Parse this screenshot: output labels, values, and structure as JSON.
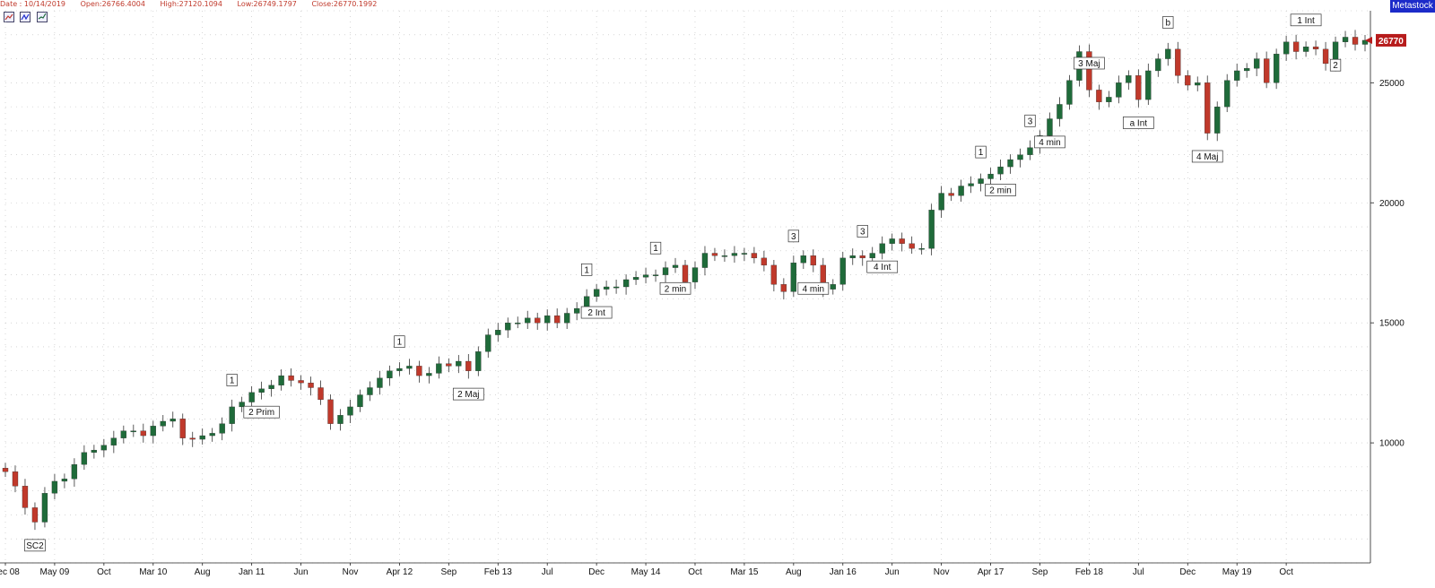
{
  "header": {
    "date": "Date : 10/14/2019",
    "open": "Open:26766.4004",
    "high": "High:27120.1094",
    "low": "Low:26749.1797",
    "close": "Close:26770.1992",
    "brand": "Metastock"
  },
  "toolbar": {
    "icons": [
      "chart-properties-icon",
      "chart-zoom-icon",
      "chart-indicator-icon"
    ]
  },
  "colors": {
    "up": "#1f6b3a",
    "down": "#c0392b",
    "grid": "#bdbdbd",
    "price_tag": "#b71c1c",
    "brand_bg": "#1c2bc9"
  },
  "chart_data": {
    "type": "line",
    "title": "",
    "xlabel": "",
    "ylabel": "",
    "ylim": [
      5000,
      28000
    ],
    "grid": true,
    "y_ticks": [
      10000,
      15000,
      20000,
      25000
    ],
    "y_tick_labels": [
      "10000",
      "15000",
      "20000",
      "25000"
    ],
    "x_ticks": [
      "Dec 08",
      "May 09",
      "Oct",
      "Mar 10",
      "Aug",
      "Jan 11",
      "Jun",
      "Nov",
      "Apr 12",
      "Sep",
      "Feb 13",
      "Jul",
      "Dec",
      "May 14",
      "Oct",
      "Mar 15",
      "Aug",
      "Jan 16",
      "Jun",
      "Nov",
      "Apr 17",
      "Sep",
      "Feb 18",
      "Jul",
      "Dec",
      "May 19",
      "Oct"
    ],
    "x_tick_index": [
      0,
      5,
      10,
      15,
      20,
      25,
      30,
      35,
      40,
      45,
      50,
      55,
      60,
      65,
      70,
      75,
      80,
      85,
      90,
      95,
      100,
      105,
      110,
      115,
      120,
      125,
      130
    ],
    "last_price_label": "26770",
    "last_price": 26770,
    "series": [
      {
        "values": [
          8800,
          8200,
          7300,
          6700,
          7900,
          8400,
          8500,
          9100,
          9600,
          9700,
          9900,
          10200,
          10500,
          10500,
          10300,
          10700,
          10900,
          11000,
          10200,
          10150,
          10300,
          10400,
          10800,
          11500,
          11700,
          12100,
          12250,
          12400,
          12800,
          12600,
          12500,
          12300,
          11800,
          10800,
          11150,
          11500,
          12000,
          12300,
          12700,
          13000,
          13100,
          13200,
          12800,
          12900,
          13300,
          13200,
          13400,
          13000,
          13800,
          14500,
          14700,
          15000,
          15000,
          15200,
          15000,
          15300,
          15000,
          15400,
          15600,
          16100,
          16400,
          16500,
          16500,
          16800,
          16900,
          17000,
          17000,
          17300,
          17400,
          16700,
          17300,
          17900,
          17800,
          17800,
          17900,
          17900,
          17700,
          17400,
          16600,
          16300,
          17500,
          17800,
          17400,
          16400,
          16600,
          17700,
          17800,
          17700,
          17900,
          18300,
          18500,
          18300,
          18100,
          18100,
          19700,
          20400,
          20300,
          20700,
          20800,
          21000,
          21200,
          21500,
          21800,
          22000,
          22300,
          22800,
          23500,
          24100,
          25100,
          26300,
          24700,
          24200,
          24400,
          25000,
          25300,
          24300,
          25500,
          26000,
          26400,
          25300,
          24900,
          25000,
          22900,
          24000,
          25100,
          25500,
          25600,
          26000,
          25000,
          26200,
          26700,
          26300,
          26500,
          26400,
          25800,
          26700,
          26900,
          26600,
          26770
        ],
        "annotations": [
          {
            "i": 3,
            "label": "SC2",
            "pos": "below"
          },
          {
            "i": 23,
            "label": "1",
            "pos": "above"
          },
          {
            "i": 26,
            "label": "2 Prim",
            "pos": "below"
          },
          {
            "i": 40,
            "label": "1",
            "pos": "above"
          },
          {
            "i": 47,
            "label": "2 Maj",
            "pos": "below"
          },
          {
            "i": 59,
            "label": "1",
            "pos": "above"
          },
          {
            "i": 60,
            "label": "2 Int",
            "pos": "below"
          },
          {
            "i": 66,
            "label": "1",
            "pos": "above"
          },
          {
            "i": 68,
            "label": "2 min",
            "pos": "below"
          },
          {
            "i": 80,
            "label": "3",
            "pos": "above"
          },
          {
            "i": 82,
            "label": "4 min",
            "pos": "below"
          },
          {
            "i": 87,
            "label": "3",
            "pos": "above"
          },
          {
            "i": 89,
            "label": "4 Int",
            "pos": "below"
          },
          {
            "i": 99,
            "label": "1",
            "pos": "above"
          },
          {
            "i": 101,
            "label": "2 min",
            "pos": "below"
          },
          {
            "i": 104,
            "label": "3",
            "pos": "above"
          },
          {
            "i": 106,
            "label": "4 min",
            "pos": "below"
          },
          {
            "i": 110,
            "label": "3 Maj",
            "pos": "above"
          },
          {
            "i": 115,
            "label": "a Int",
            "pos": "below"
          },
          {
            "i": 118,
            "label": "b",
            "pos": "above"
          },
          {
            "i": 122,
            "label": "4 Maj",
            "pos": "below"
          },
          {
            "i": 132,
            "label": "1 Int",
            "pos": "above"
          },
          {
            "i": 135,
            "label": "2",
            "pos": "below"
          }
        ]
      }
    ]
  }
}
